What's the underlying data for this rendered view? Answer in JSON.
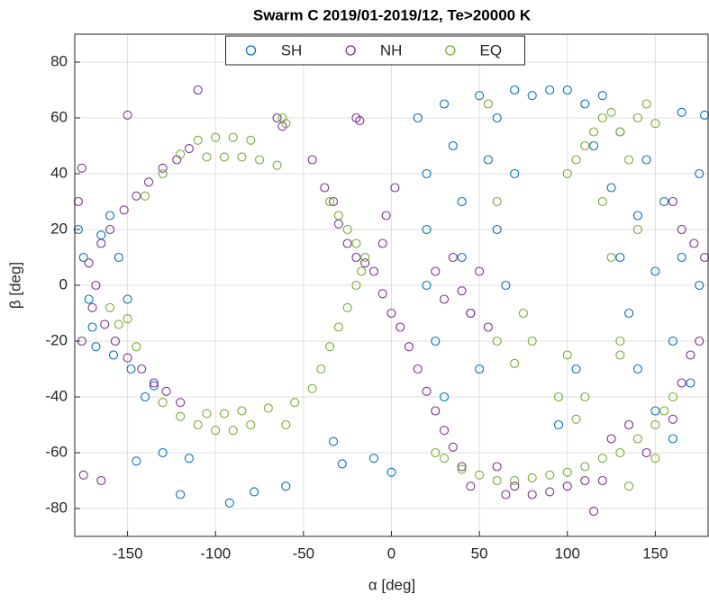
{
  "chart_data": {
    "type": "scatter",
    "title": "Swarm C 2019/01-2019/12, Te>20000 K",
    "x_label": "α [deg]",
    "y_label": "β [deg]",
    "xlim": [
      -180,
      180
    ],
    "ylim": [
      -90,
      90
    ],
    "xticks": [
      -150,
      -100,
      -50,
      0,
      50,
      100,
      150
    ],
    "yticks": [
      -80,
      -60,
      -40,
      -20,
      0,
      20,
      40,
      60,
      80
    ],
    "grid": true,
    "legend": "north",
    "series": [
      {
        "name": "SH",
        "color": "#0072BD",
        "x": [
          -178,
          -175,
          -172,
          -170,
          -168,
          -165,
          -160,
          -158,
          -155,
          -150,
          -148,
          -140,
          -135,
          -145,
          -130,
          -120,
          -115,
          -92,
          -78,
          -60,
          -33,
          -28,
          -10,
          0,
          15,
          20,
          20,
          20,
          25,
          30,
          30,
          35,
          40,
          40,
          45,
          50,
          50,
          55,
          60,
          60,
          65,
          70,
          70,
          80,
          90,
          100,
          110,
          115,
          120,
          125,
          130,
          130,
          135,
          140,
          140,
          145,
          150,
          150,
          155,
          160,
          165,
          170,
          175,
          178,
          165,
          105,
          95,
          160,
          175
        ],
        "values": [
          20,
          10,
          -5,
          -15,
          -22,
          18,
          25,
          -25,
          10,
          -5,
          -30,
          -40,
          -36,
          -63,
          -60,
          -75,
          -62,
          -78,
          -74,
          -72,
          -56,
          -64,
          -62,
          -67,
          60,
          40,
          20,
          0,
          -20,
          65,
          -40,
          50,
          30,
          10,
          -10,
          -30,
          68,
          45,
          20,
          60,
          0,
          70,
          40,
          68,
          70,
          70,
          65,
          50,
          68,
          35,
          10,
          55,
          -10,
          25,
          -30,
          45,
          5,
          -45,
          30,
          -20,
          10,
          -35,
          0,
          61,
          62,
          -30,
          -50,
          -55,
          40
        ]
      },
      {
        "name": "NH",
        "color": "#7E2F8E",
        "x": [
          -178,
          -176,
          -172,
          -170,
          -168,
          -165,
          -163,
          -160,
          -157,
          -152,
          -150,
          -145,
          -142,
          -138,
          -135,
          -130,
          -128,
          -122,
          -120,
          -115,
          -176,
          -175,
          -165,
          -110,
          -150,
          -65,
          -62,
          -20,
          -18,
          -45,
          -38,
          -33,
          -30,
          -25,
          -20,
          -15,
          -10,
          -5,
          0,
          5,
          10,
          15,
          20,
          25,
          30,
          35,
          40,
          45,
          -5,
          -3,
          2,
          25,
          30,
          35,
          40,
          45,
          50,
          55,
          60,
          70,
          80,
          90,
          100,
          110,
          120,
          125,
          135,
          145,
          160,
          165,
          170,
          175,
          160,
          165,
          172,
          178,
          115,
          65
        ],
        "values": [
          30,
          -20,
          8,
          -8,
          0,
          15,
          -14,
          20,
          -20,
          27,
          -26,
          32,
          -30,
          37,
          -35,
          42,
          -38,
          45,
          -42,
          49,
          42,
          -68,
          -70,
          70,
          61,
          60,
          57,
          60,
          59,
          45,
          35,
          30,
          22,
          15,
          10,
          8,
          5,
          -3,
          -10,
          -15,
          -22,
          -30,
          -38,
          -45,
          -52,
          -58,
          -65,
          -72,
          15,
          25,
          35,
          5,
          -5,
          10,
          -2,
          -10,
          5,
          -15,
          -65,
          -72,
          -75,
          -74,
          -72,
          -70,
          -70,
          -55,
          -50,
          -60,
          -48,
          -35,
          -25,
          -20,
          30,
          20,
          15,
          10,
          -81,
          -75
        ]
      },
      {
        "name": "EQ",
        "color": "#77AC30",
        "x": [
          -160,
          -155,
          -145,
          -150,
          -140,
          -130,
          -120,
          -110,
          -100,
          -90,
          -80,
          -105,
          -95,
          -85,
          -75,
          -65,
          -130,
          -120,
          -110,
          -100,
          -90,
          -80,
          -105,
          -95,
          -85,
          -70,
          -60,
          -55,
          -45,
          -40,
          -35,
          -30,
          -25,
          -20,
          -17,
          -15,
          -20,
          -25,
          -30,
          -35,
          -62,
          -60,
          25,
          30,
          40,
          50,
          60,
          70,
          80,
          90,
          100,
          110,
          120,
          130,
          140,
          150,
          155,
          160,
          100,
          105,
          110,
          115,
          120,
          125,
          130,
          135,
          140,
          145,
          150,
          120,
          125,
          130,
          140,
          100,
          105,
          110,
          95,
          75,
          80,
          60,
          55,
          60,
          70,
          130,
          150,
          135
        ],
        "values": [
          -8,
          -14,
          -22,
          -12,
          32,
          40,
          47,
          52,
          53,
          53,
          52,
          46,
          46,
          46,
          45,
          43,
          -42,
          -47,
          -50,
          -52,
          -52,
          -50,
          -46,
          -46,
          -45,
          -44,
          -50,
          -42,
          -37,
          -30,
          -22,
          -15,
          -8,
          0,
          5,
          10,
          15,
          20,
          25,
          30,
          60,
          58,
          -60,
          -62,
          -66,
          -68,
          -70,
          -70,
          -69,
          -68,
          -67,
          -65,
          -62,
          -60,
          -55,
          -50,
          -45,
          -40,
          40,
          45,
          50,
          55,
          60,
          62,
          55,
          45,
          60,
          65,
          58,
          30,
          10,
          -20,
          20,
          -25,
          -48,
          -40,
          -40,
          -10,
          -20,
          30,
          65,
          -20,
          -28,
          -25,
          -62,
          -72
        ]
      }
    ]
  }
}
